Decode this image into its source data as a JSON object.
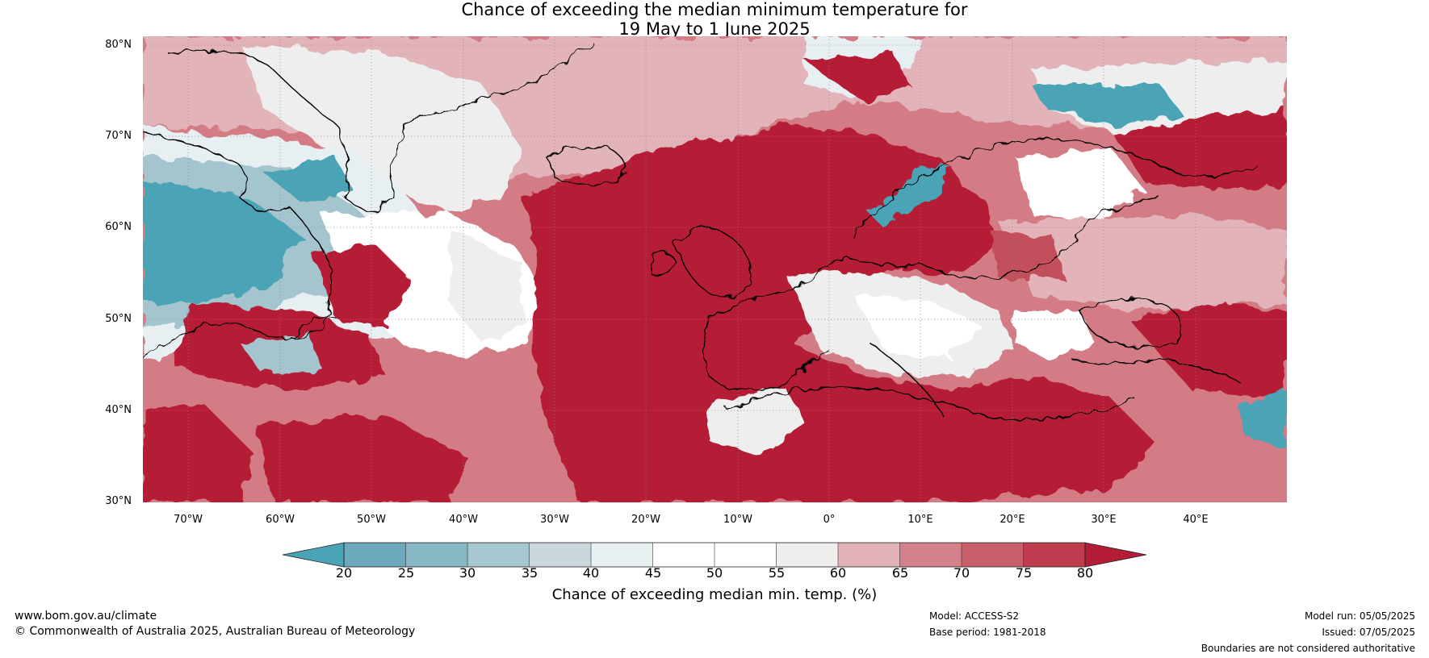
{
  "title": {
    "line1": "Chance of exceeding the median minimum temperature for",
    "line2": "19 May to 1 June 2025"
  },
  "map": {
    "lat_labels": [
      "80°N",
      "70°N",
      "60°N",
      "50°N",
      "40°N",
      "30°N"
    ],
    "lon_labels": [
      "70°W",
      "60°W",
      "50°W",
      "40°W",
      "30°W",
      "20°W",
      "10°W",
      "0°",
      "10°E",
      "20°E",
      "30°E",
      "40°E"
    ],
    "extent": {
      "lon": [
        -75,
        50
      ],
      "lat": [
        30,
        81
      ]
    },
    "colors": {
      "very_high": "#b51c36",
      "high": "#c24f5c",
      "mid_high": "#d47c85",
      "low_high": "#e2b3b8",
      "neutral_warm": "#eeeeee",
      "neutral": "#ffffff",
      "near_neutral_cool": "#e7eff2",
      "cool": "#c9d8de",
      "cooler": "#a4c4ce",
      "coolest": "#4ba3b6",
      "coast": "#000000",
      "borders": "#808080"
    }
  },
  "colorbar": {
    "ticks": [
      "20",
      "25",
      "30",
      "35",
      "40",
      "45",
      "50",
      "55",
      "60",
      "65",
      "70",
      "75",
      "80"
    ],
    "bin_colors": [
      "#6aaabb",
      "#88b8c5",
      "#a8c6ce",
      "#cad8dd",
      "#e8f0f2",
      "#ffffff",
      "#ffffff",
      "#eeeeec",
      "#e2b4b9",
      "#d4808a",
      "#c8606c",
      "#be3c4e"
    ],
    "under_color": "#4ba3b6",
    "over_color": "#b51c36",
    "label": "Chance of exceeding median min. temp. (%)"
  },
  "footer": {
    "website": "www.bom.gov.au/climate",
    "copyright": "© Commonwealth of Australia 2025, Australian Bureau of Meteorology",
    "model": "Model: ACCESS-S2",
    "base_period": "Base period: 1981-2018",
    "model_run": "Model run: 05/05/2025",
    "issued": "Issued: 07/05/2025",
    "disclaimer": "Boundaries are not considered authoritative"
  }
}
